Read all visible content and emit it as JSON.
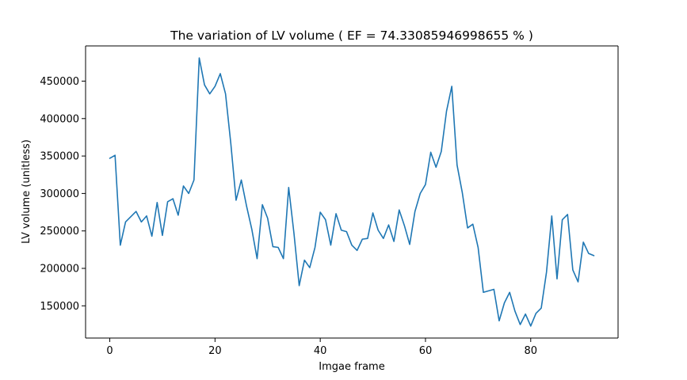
{
  "chart_data": {
    "type": "line",
    "title": "The variation of LV volume ( EF = 74.33085946998655 % )",
    "xlabel": "Imgae frame",
    "ylabel": "LV volume (unitless)",
    "xlim": [
      -4.6,
      96.6
    ],
    "ylim": [
      107000,
      497000
    ],
    "xticks": [
      0,
      20,
      40,
      60,
      80
    ],
    "yticks": [
      150000,
      200000,
      250000,
      300000,
      350000,
      400000,
      450000
    ],
    "grid": false,
    "legend": "none",
    "series": [
      {
        "color": "#1f77b4",
        "x": [
          0,
          1,
          2,
          3,
          4,
          5,
          6,
          7,
          8,
          9,
          10,
          11,
          12,
          13,
          14,
          15,
          16,
          17,
          18,
          19,
          20,
          21,
          22,
          23,
          24,
          25,
          26,
          27,
          28,
          29,
          30,
          31,
          32,
          33,
          34,
          35,
          36,
          37,
          38,
          39,
          40,
          41,
          42,
          43,
          44,
          45,
          46,
          47,
          48,
          49,
          50,
          51,
          52,
          53,
          54,
          55,
          56,
          57,
          58,
          59,
          60,
          61,
          62,
          63,
          64,
          65,
          66,
          67,
          68,
          69,
          70,
          71,
          72,
          73,
          74,
          75,
          76,
          77,
          78,
          79,
          80,
          81,
          82,
          83,
          84,
          85,
          86,
          87,
          88,
          89,
          90,
          91,
          92
        ],
        "values": [
          347000,
          351000,
          231000,
          262000,
          269000,
          276000,
          262000,
          270000,
          243000,
          288000,
          244000,
          289000,
          293000,
          271000,
          310000,
          300000,
          318000,
          481000,
          445000,
          433000,
          443000,
          460000,
          433000,
          367000,
          291000,
          318000,
          283000,
          252000,
          213000,
          285000,
          267000,
          229000,
          228000,
          213000,
          308000,
          247000,
          177000,
          211000,
          201000,
          228000,
          275000,
          265000,
          231000,
          273000,
          251000,
          249000,
          231000,
          224000,
          239000,
          240000,
          274000,
          251000,
          240000,
          258000,
          236000,
          278000,
          257000,
          232000,
          276000,
          300000,
          312000,
          355000,
          335000,
          356000,
          410000,
          443000,
          338000,
          301000,
          254000,
          259000,
          228000,
          168000,
          170000,
          172000,
          130000,
          154000,
          168000,
          143000,
          125000,
          139000,
          123000,
          140000,
          147000,
          195000,
          270000,
          186000,
          265000,
          272000,
          198000,
          182000,
          235000,
          220000,
          217000
        ]
      }
    ]
  }
}
